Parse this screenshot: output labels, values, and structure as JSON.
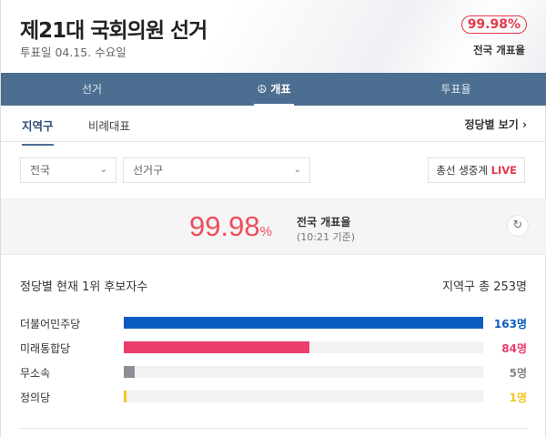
{
  "header": {
    "title": "제21대 국회의원 선거",
    "subtitle": "투표일 04.15. 수요일",
    "rate_badge": "99.98%",
    "rate_label": "전국 개표율"
  },
  "nav": {
    "tabs": [
      {
        "label": "선거"
      },
      {
        "label": "개표",
        "icon": "vote-icon",
        "active": true
      },
      {
        "label": "투표율"
      }
    ]
  },
  "subtabs": {
    "items": [
      {
        "label": "지역구",
        "active": true
      },
      {
        "label": "비례대표"
      }
    ],
    "party_view": "정당별 보기"
  },
  "filters": {
    "region": "전국",
    "district": "선거구",
    "live_label": "총선 생중계",
    "live_badge": "LIVE"
  },
  "rate": {
    "value": "99.98",
    "unit": "%",
    "label": "전국 개표율",
    "time": "(10:21 기준)"
  },
  "leaders": {
    "title": "정당별 현재 1위 후보자수",
    "total": "지역구 총 253명",
    "parties": [
      {
        "name": "더불어민주당",
        "count": 163,
        "count_label": "163명",
        "color": "#0b5cc0"
      },
      {
        "name": "미래통합당",
        "count": 84,
        "count_label": "84명",
        "color": "#ea3f6b"
      },
      {
        "name": "무소속",
        "count": 5,
        "count_label": "5명",
        "color": "#8c9095"
      },
      {
        "name": "정의당",
        "count": 1,
        "count_label": "1명",
        "color": "#f5c51f"
      }
    ]
  }
}
